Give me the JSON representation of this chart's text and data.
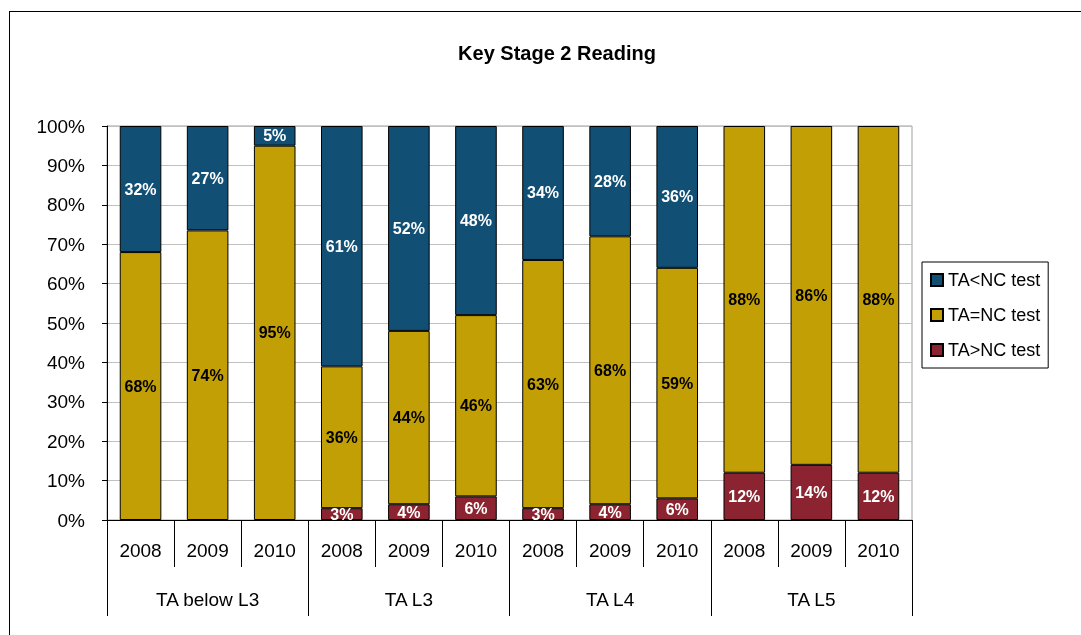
{
  "chart_data": {
    "type": "bar",
    "title": "Key Stage 2 Reading",
    "stacked": true,
    "categories": [
      "2008",
      "2009",
      "2010",
      "2008",
      "2009",
      "2010",
      "2008",
      "2009",
      "2010",
      "2008",
      "2009",
      "2010"
    ],
    "annotations": [
      "TA below L3",
      "TA L3",
      "TA L4",
      "TA L5"
    ],
    "series": [
      {
        "name": "TA>NC test",
        "color": "#8b2430",
        "values": [
          null,
          null,
          null,
          3,
          4,
          6,
          3,
          4,
          5.5,
          12,
          14,
          12
        ],
        "value_labels": [
          null,
          null,
          null,
          "3%",
          "4%",
          "6%",
          "3%",
          "4%",
          "6%",
          "12%",
          "14%",
          "12%"
        ]
      },
      {
        "name": "TA=NC test",
        "color": "#c2a005",
        "values": [
          68,
          73.5,
          95,
          36,
          44,
          46,
          63,
          68,
          58.5,
          88,
          86,
          88
        ],
        "value_labels": [
          "68%",
          "74%",
          "95%",
          "36%",
          "44%",
          "46%",
          "63%",
          "68%",
          "59%",
          "88%",
          "86%",
          "88%"
        ]
      },
      {
        "name": "TA<NC test",
        "color": "#124f75",
        "values": [
          32,
          26.5,
          5,
          61,
          52,
          48,
          34,
          28,
          36,
          null,
          null,
          null
        ],
        "value_labels": [
          "32%",
          "27%",
          "5%",
          "61%",
          "52%",
          "48%",
          "34%",
          "28%",
          "36%",
          null,
          null,
          null
        ]
      }
    ],
    "ylim": [
      0,
      100
    ],
    "yticks": [
      {
        "value": 0,
        "label": "0%"
      },
      {
        "value": 10,
        "label": "10%"
      },
      {
        "value": 20,
        "label": "20%"
      },
      {
        "value": 30,
        "label": "30%"
      },
      {
        "value": 40,
        "label": "40%"
      },
      {
        "value": 50,
        "label": "50%"
      },
      {
        "value": 60,
        "label": "60%"
      },
      {
        "value": 70,
        "label": "70%"
      },
      {
        "value": 80,
        "label": "80%"
      },
      {
        "value": 90,
        "label": "90%"
      },
      {
        "value": 100,
        "label": "100%"
      }
    ],
    "grid": "y",
    "legend": "right"
  }
}
